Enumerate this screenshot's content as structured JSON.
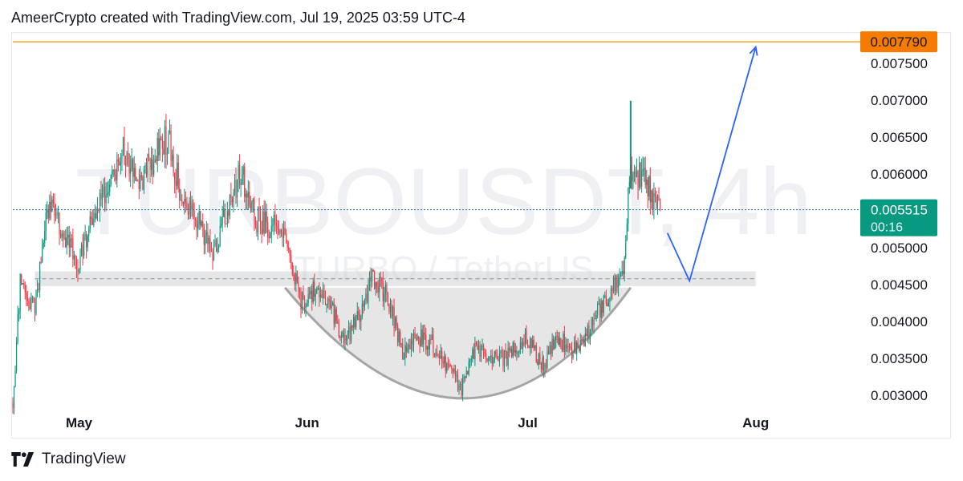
{
  "header": {
    "text": "AmeerCrypto created with TradingView.com, Jul 19, 2025 03:59 UTC-4"
  },
  "footer": {
    "brand": "TradingView",
    "logo_icon": "tradingview-logo-icon"
  },
  "colors": {
    "up": "#089981",
    "down": "#f23645",
    "target_line": "#f5a623",
    "target_badge": "#f57c00",
    "price_badge": "#089981",
    "projection": "#2962ff",
    "price_line": "#2a72a8",
    "zone": "#cfd1d5",
    "cup_fill": "#dcdcdc",
    "cup_stroke": "#a5a5a5",
    "watermark": "#eef0f3"
  },
  "chart_data": {
    "type": "candlestick",
    "symbol_watermark": "TURBOUSDT, 4h",
    "symbol_sub_watermark": "TURBO / TetherUS",
    "ylim": [
      0.00285,
      0.0079
    ],
    "y_ticks": [
      {
        "value": 0.0075,
        "label": "0.007500"
      },
      {
        "value": 0.007,
        "label": "0.007000"
      },
      {
        "value": 0.0065,
        "label": "0.006500"
      },
      {
        "value": 0.006,
        "label": "0.006000"
      },
      {
        "value": 0.0055,
        "label": "0.005500"
      },
      {
        "value": 0.005,
        "label": "0.005000"
      },
      {
        "value": 0.0045,
        "label": "0.004500"
      },
      {
        "value": 0.004,
        "label": "0.004000"
      },
      {
        "value": 0.0035,
        "label": "0.003500"
      },
      {
        "value": 0.003,
        "label": "0.003000"
      }
    ],
    "x_range": [
      "2025-04-22",
      "2025-08-15"
    ],
    "x_ticks": [
      {
        "date": "2025-05-01",
        "label": "May"
      },
      {
        "date": "2025-06-01",
        "label": "Jun"
      },
      {
        "date": "2025-07-01",
        "label": "Jul"
      },
      {
        "date": "2025-08-01",
        "label": "Aug"
      }
    ],
    "target_level": {
      "value": 0.0077906,
      "label": "0.007790"
    },
    "current_price": {
      "value": 0.005515,
      "label": "0.005515",
      "countdown": "00:16"
    },
    "support_zone": {
      "low": 0.00448,
      "high": 0.00468,
      "mid": 0.00458,
      "start": "2025-04-25",
      "end": "2025-08-01"
    },
    "cup": {
      "start": "2025-05-29",
      "bottom": "2025-06-23",
      "end": "2025-07-15",
      "rim": 0.00446,
      "bottom_value": 0.00296
    },
    "projection": [
      {
        "date": "2025-07-20",
        "value": 0.0052
      },
      {
        "date": "2025-07-23",
        "value": 0.00455
      },
      {
        "date": "2025-08-01",
        "value": 0.00772
      }
    ],
    "price_path": [
      [
        "2025-04-22",
        0.0029
      ],
      [
        "2025-04-23",
        0.0045
      ],
      [
        "2025-04-25",
        0.0042
      ],
      [
        "2025-04-27",
        0.0057
      ],
      [
        "2025-04-29",
        0.0052
      ],
      [
        "2025-05-01",
        0.0048
      ],
      [
        "2025-05-03",
        0.0055
      ],
      [
        "2025-05-05",
        0.0057
      ],
      [
        "2025-05-07",
        0.0063
      ],
      [
        "2025-05-09",
        0.0058
      ],
      [
        "2025-05-11",
        0.0062
      ],
      [
        "2025-05-13",
        0.0065
      ],
      [
        "2025-05-15",
        0.0057
      ],
      [
        "2025-05-17",
        0.0054
      ],
      [
        "2025-05-19",
        0.0049
      ],
      [
        "2025-05-21",
        0.0055
      ],
      [
        "2025-05-23",
        0.006
      ],
      [
        "2025-05-25",
        0.0054
      ],
      [
        "2025-05-27",
        0.0053
      ],
      [
        "2025-05-29",
        0.0052
      ],
      [
        "2025-05-31",
        0.0043
      ],
      [
        "2025-06-02",
        0.0044
      ],
      [
        "2025-06-04",
        0.0043
      ],
      [
        "2025-06-06",
        0.0037
      ],
      [
        "2025-06-08",
        0.0041
      ],
      [
        "2025-06-10",
        0.0046
      ],
      [
        "2025-06-12",
        0.0043
      ],
      [
        "2025-06-14",
        0.0036
      ],
      [
        "2025-06-16",
        0.0038
      ],
      [
        "2025-06-18",
        0.0037
      ],
      [
        "2025-06-20",
        0.0034
      ],
      [
        "2025-06-22",
        0.0031
      ],
      [
        "2025-06-24",
        0.0037
      ],
      [
        "2025-06-26",
        0.0035
      ],
      [
        "2025-06-28",
        0.0035
      ],
      [
        "2025-07-01",
        0.0038
      ],
      [
        "2025-07-03",
        0.0034
      ],
      [
        "2025-07-05",
        0.0038
      ],
      [
        "2025-07-07",
        0.0036
      ],
      [
        "2025-07-09",
        0.0038
      ],
      [
        "2025-07-11",
        0.0042
      ],
      [
        "2025-07-13",
        0.0045
      ],
      [
        "2025-07-14",
        0.0048
      ],
      [
        "2025-07-15",
        0.0061
      ],
      [
        "2025-07-16",
        0.006
      ],
      [
        "2025-07-17",
        0.0059
      ],
      [
        "2025-07-18",
        0.0057
      ],
      [
        "2025-07-19",
        0.005515
      ]
    ]
  }
}
